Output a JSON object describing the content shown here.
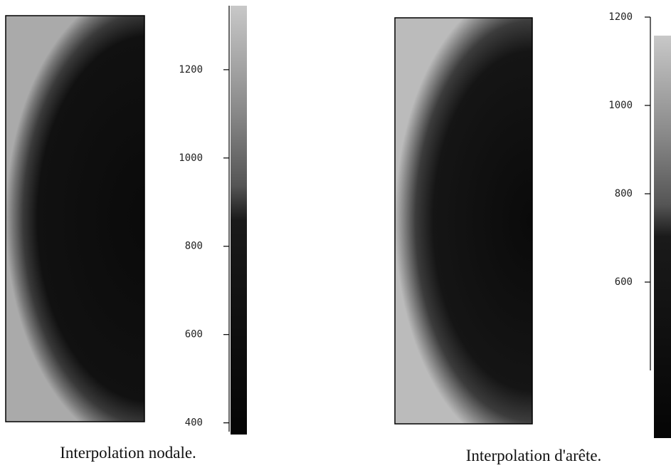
{
  "figures": [
    {
      "caption": "Interpolation nodale.",
      "colorbar": {
        "ylim": [
          380,
          1345
        ],
        "yticks": [
          400,
          600,
          800,
          1000,
          1200
        ]
      }
    },
    {
      "caption": "Interpolation d'arête.",
      "colorbar": {
        "ylim": [
          400,
          1200
        ],
        "yticks": [
          600,
          800,
          1000,
          1200
        ]
      }
    }
  ]
}
